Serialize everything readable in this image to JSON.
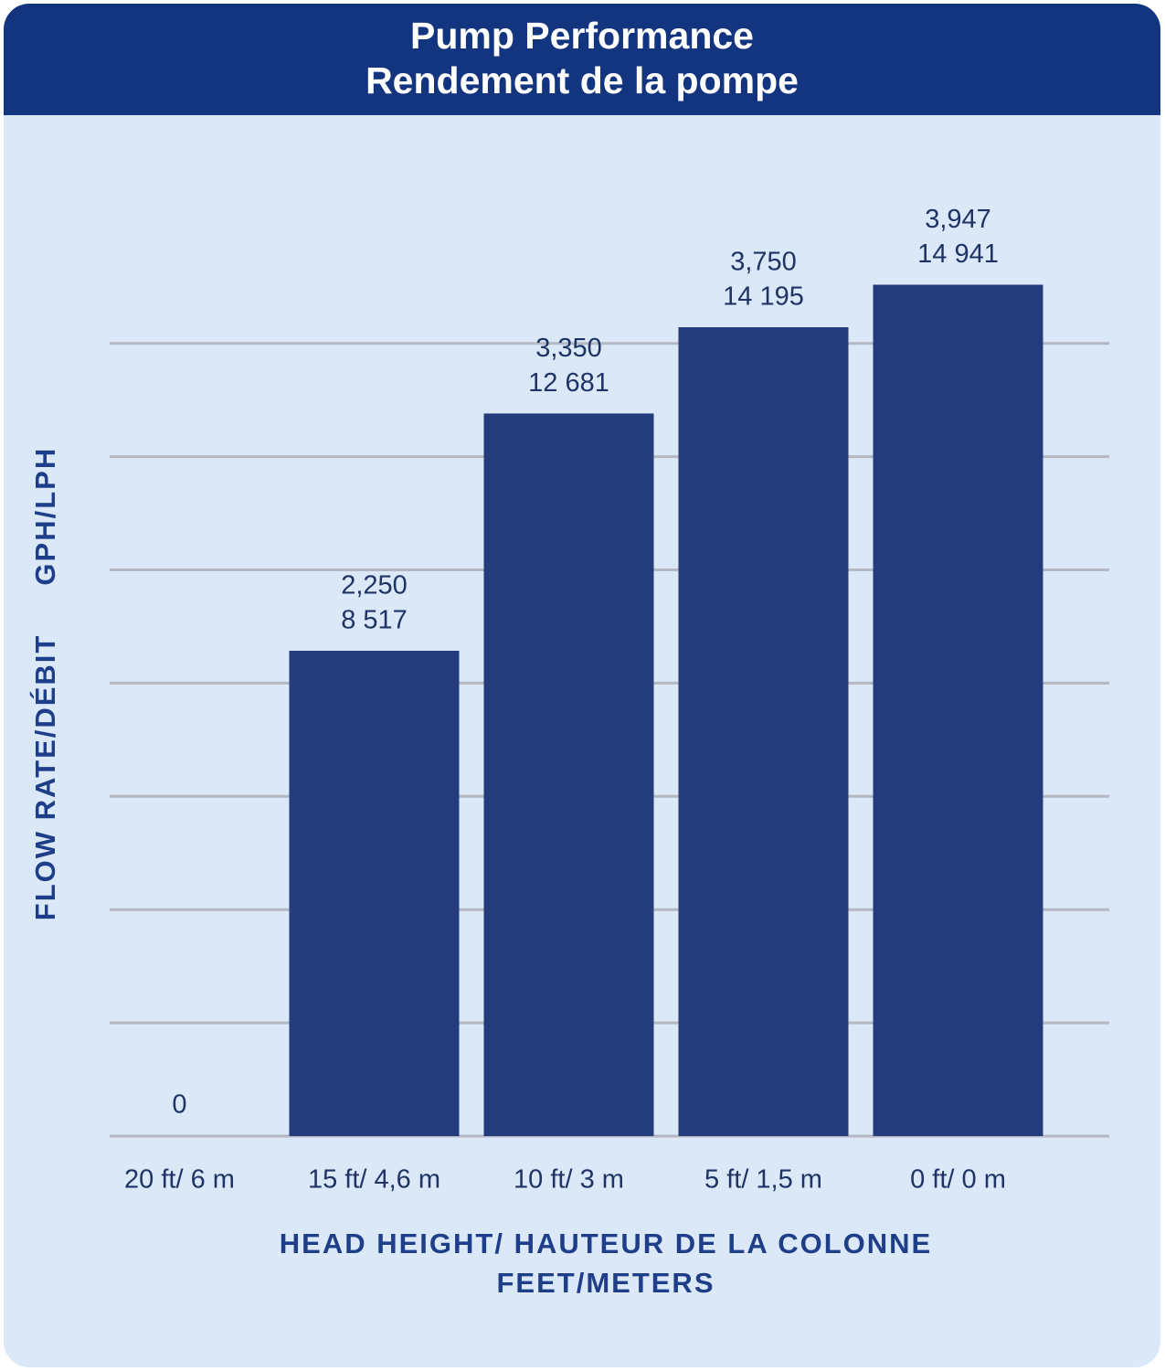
{
  "chart_data": {
    "type": "bar",
    "title": "Pump Performance",
    "subtitle": "Rendement de la pompe",
    "y_label": "FLOW RATE/DÉBIT     GPH/LPH",
    "x_label": [
      "HEAD HEIGHT/ HAUTEUR DE LA COLONNE",
      "FEET/METERS"
    ],
    "categories": [
      "20 ft/ 6 m",
      "15 ft/ 4,6 m",
      "10 ft/ 3 m",
      "5 ft/ 1,5 m",
      "0 ft/ 0 m"
    ],
    "values": [
      0,
      2250,
      3350,
      3750,
      3947
    ],
    "value_labels": [
      "0",
      "2,250",
      "3,350",
      "3,750",
      "3,947"
    ],
    "secondary_values": [
      null,
      8517,
      12681,
      14195,
      14941
    ],
    "secondary_value_labels": [
      null,
      "8 517",
      "12 681",
      "14 195",
      "14 941"
    ],
    "color": "#253c7c",
    "ylim": [
      0,
      4000
    ],
    "yticks": [
      0,
      525,
      1050,
      1575,
      2100,
      2625,
      3150,
      3675
    ],
    "grid": true
  }
}
